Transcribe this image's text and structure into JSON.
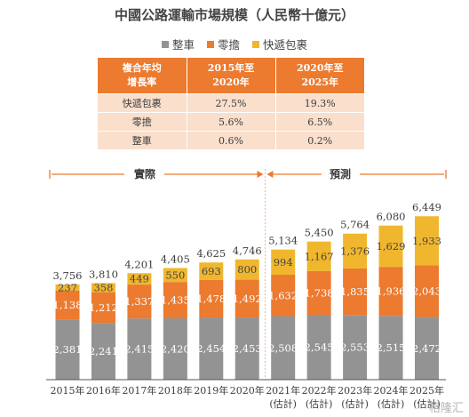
{
  "title": "中國公路運輸市場規模（人民幣十億元）",
  "legend": [
    {
      "label": "整車",
      "color": "#939393"
    },
    {
      "label": "零擔",
      "color": "#ec7a2f"
    },
    {
      "label": "快遞包裹",
      "color": "#f0b72e"
    }
  ],
  "table": {
    "headers": [
      "複合年均\n增長率",
      "2015年至\n2020年",
      "2020年至\n2025年"
    ],
    "rows": [
      [
        "快遞包裹",
        "27.5%",
        "19.3%"
      ],
      [
        "零擔",
        "5.6%",
        "6.5%"
      ],
      [
        "整車",
        "0.6%",
        "0.2%"
      ]
    ]
  },
  "brackets": {
    "actual": "實際",
    "forecast": "預測"
  },
  "chart_data": {
    "type": "bar",
    "stacked": true,
    "categories": [
      "2015年",
      "2016年",
      "2017年",
      "2018年",
      "2019年",
      "2020年",
      "2021年",
      "2022年",
      "2023年",
      "2024年",
      "2025年"
    ],
    "sublabels": [
      "",
      "",
      "",
      "",
      "",
      "",
      "(估計)",
      "(估計)",
      "(估計)",
      "(估計)",
      "(估計)"
    ],
    "series": [
      {
        "name": "整車",
        "color": "#939393",
        "values": [
          2381,
          2241,
          2415,
          2420,
          2454,
          2453,
          2508,
          2545,
          2553,
          2515,
          2472
        ]
      },
      {
        "name": "零擔",
        "color": "#ec7a2f",
        "values": [
          1138,
          1212,
          1337,
          1435,
          1478,
          1492,
          1632,
          1738,
          1835,
          1936,
          2043
        ]
      },
      {
        "name": "快遞包裹",
        "color": "#f0b72e",
        "values": [
          237,
          358,
          449,
          550,
          693,
          800,
          994,
          1167,
          1376,
          1629,
          1933
        ]
      }
    ],
    "totals": [
      3756,
      3810,
      4201,
      4405,
      4625,
      4746,
      5134,
      5450,
      5764,
      6080,
      6449
    ]
  },
  "watermark": "格隆汇"
}
